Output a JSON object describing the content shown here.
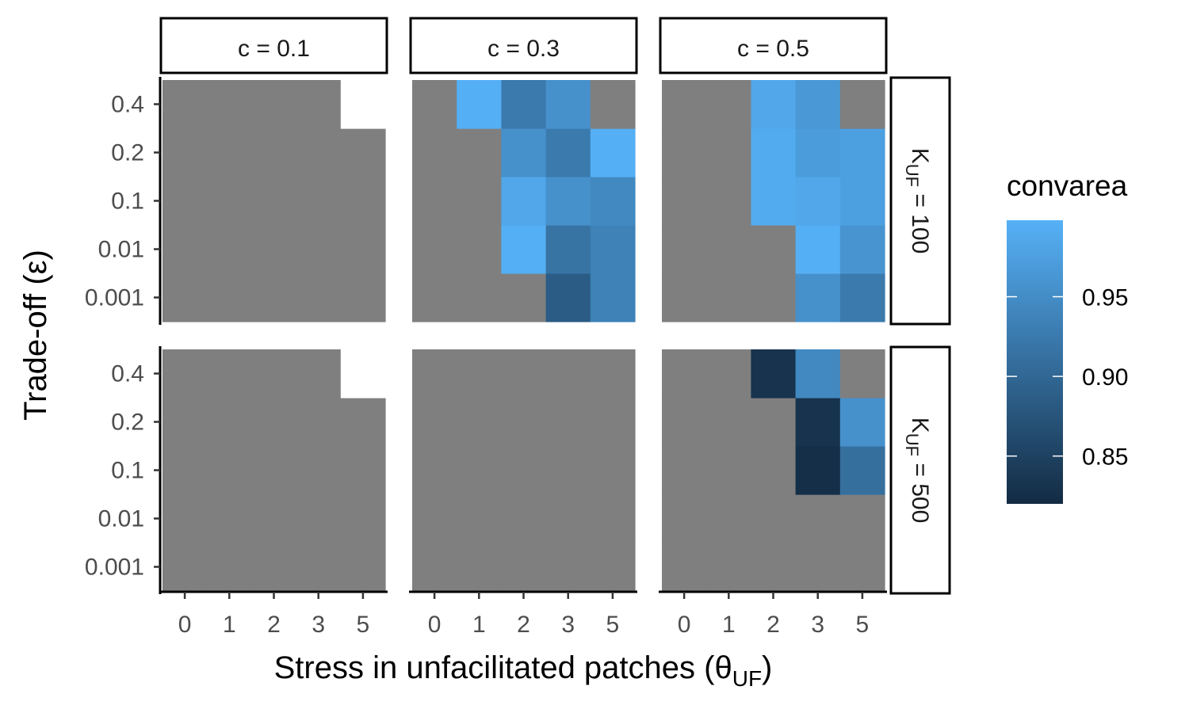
{
  "chart_data": {
    "type": "heatmap",
    "xlabel": "Stress in unfacilitated patches (θ",
    "xlabel_sub": "UF",
    "xlabel_end": ")",
    "ylabel": "Trade-off (ε)",
    "x_categories": [
      "0",
      "1",
      "2",
      "3",
      "5"
    ],
    "y_categories": [
      "0.001",
      "0.01",
      "0.1",
      "0.2",
      "0.4"
    ],
    "facet_cols": [
      {
        "label": "c = 0.1"
      },
      {
        "label": "c = 0.3"
      },
      {
        "label": "c = 0.5"
      }
    ],
    "facet_rows": [
      {
        "prefix": "K",
        "sub": "UF",
        "suffix": " = 100"
      },
      {
        "prefix": "K",
        "sub": "UF",
        "suffix": " = 500"
      }
    ],
    "na_color": "#7f7f7f",
    "colors": {
      "low": "#132b43",
      "high": "#56b1f7"
    },
    "legend": {
      "title": "convarea",
      "range": [
        0.82,
        0.998
      ],
      "breaks": [
        0.85,
        0.9,
        0.95
      ],
      "labels": [
        "0.85",
        "0.90",
        "0.95"
      ],
      "position": "right"
    },
    "panels": [
      {
        "row": 0,
        "col": 0,
        "values": [
          [
            null,
            null,
            null,
            null,
            null
          ],
          [
            null,
            null,
            null,
            null,
            null
          ],
          [
            null,
            null,
            null,
            null,
            null
          ],
          [
            null,
            null,
            null,
            null,
            null
          ],
          [
            null,
            null,
            null,
            null,
            "missing"
          ]
        ]
      },
      {
        "row": 0,
        "col": 1,
        "values": [
          [
            null,
            null,
            null,
            0.885,
            0.935
          ],
          [
            null,
            null,
            0.995,
            0.915,
            0.935
          ],
          [
            null,
            null,
            0.985,
            0.955,
            0.945
          ],
          [
            null,
            null,
            0.955,
            0.925,
            0.995
          ],
          [
            null,
            0.995,
            0.925,
            0.955,
            null
          ]
        ]
      },
      {
        "row": 0,
        "col": 2,
        "values": [
          [
            null,
            null,
            null,
            0.955,
            0.925
          ],
          [
            null,
            null,
            null,
            0.995,
            0.96
          ],
          [
            null,
            null,
            0.99,
            0.985,
            0.975
          ],
          [
            null,
            null,
            0.99,
            0.97,
            0.975
          ],
          [
            null,
            null,
            0.985,
            0.965,
            null
          ]
        ]
      },
      {
        "row": 1,
        "col": 0,
        "values": [
          [
            null,
            null,
            null,
            null,
            null
          ],
          [
            null,
            null,
            null,
            null,
            null
          ],
          [
            null,
            null,
            null,
            null,
            null
          ],
          [
            null,
            null,
            null,
            null,
            null
          ],
          [
            null,
            null,
            null,
            null,
            "missing"
          ]
        ]
      },
      {
        "row": 1,
        "col": 1,
        "values": [
          [
            null,
            null,
            null,
            null,
            null
          ],
          [
            null,
            null,
            null,
            null,
            null
          ],
          [
            null,
            null,
            null,
            null,
            null
          ],
          [
            null,
            null,
            null,
            null,
            null
          ],
          [
            null,
            null,
            null,
            null,
            null
          ]
        ]
      },
      {
        "row": 1,
        "col": 2,
        "values": [
          [
            null,
            null,
            null,
            null,
            null
          ],
          [
            null,
            null,
            null,
            null,
            null
          ],
          [
            null,
            null,
            null,
            0.825,
            0.91
          ],
          [
            null,
            null,
            null,
            0.83,
            0.955
          ],
          [
            null,
            null,
            0.83,
            0.945,
            null
          ]
        ]
      }
    ]
  }
}
